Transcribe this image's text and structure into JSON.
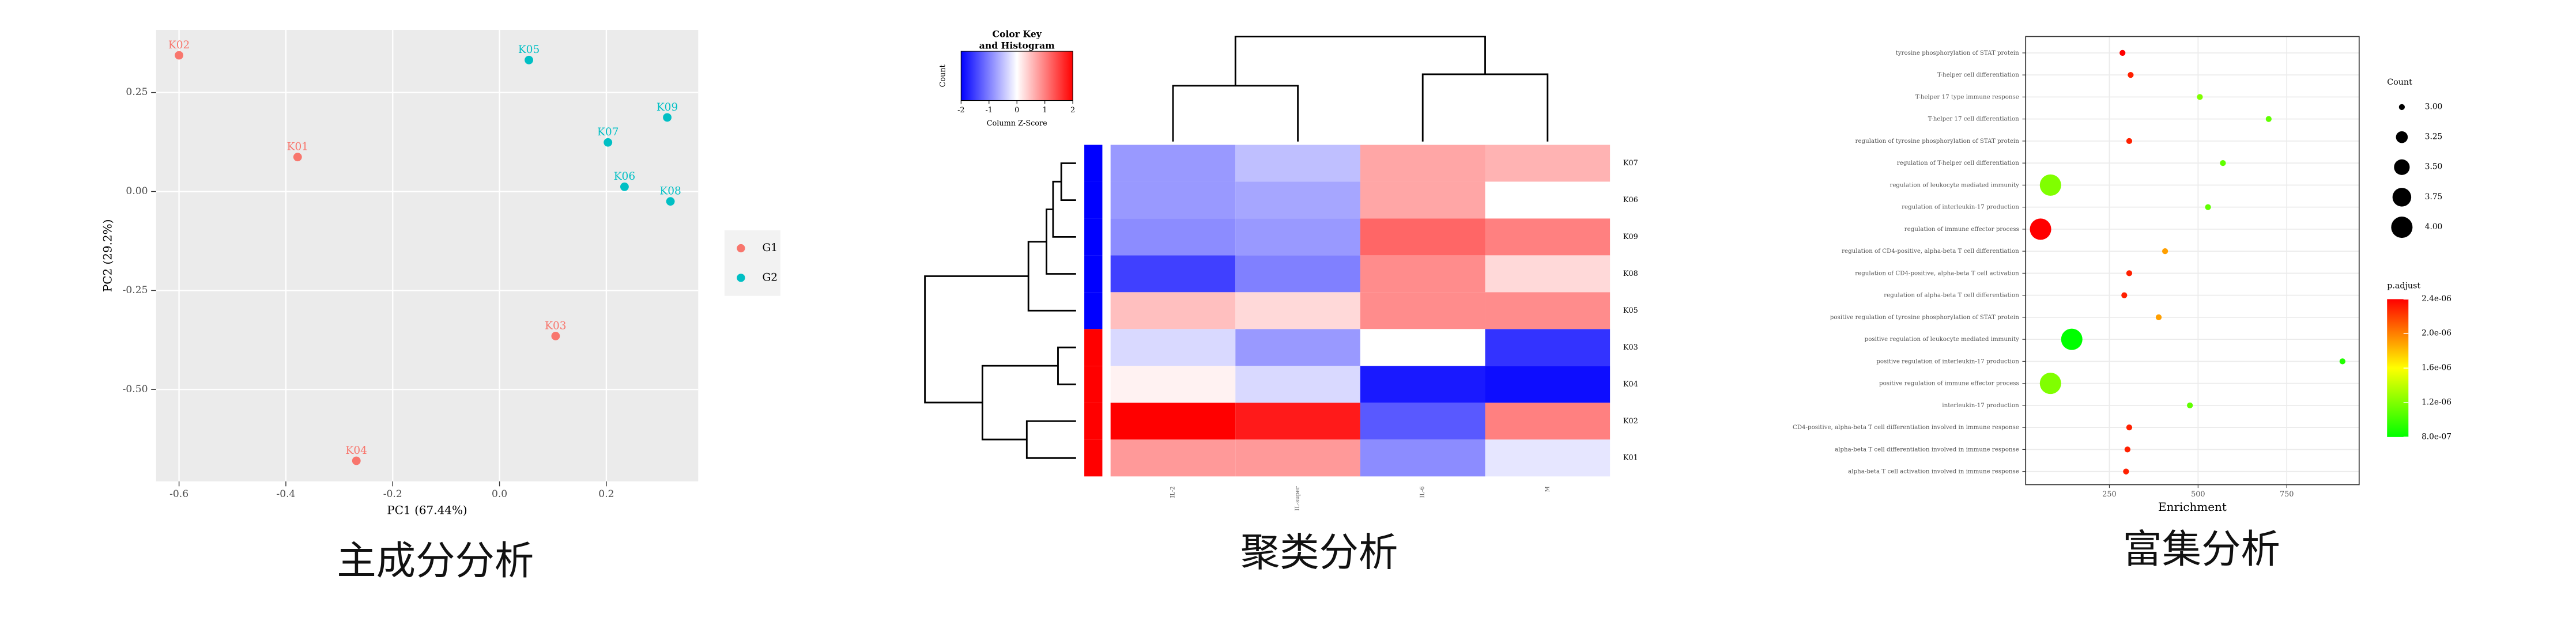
{
  "chart_data": [
    {
      "type": "scatter",
      "caption": "主成分分析",
      "xlabel": "PC1 (67.44%)",
      "ylabel": "PC2 (29.2%)",
      "xlim": [
        -0.643,
        0.372
      ],
      "ylim": [
        -0.732,
        0.408
      ],
      "xticks": [
        -0.6,
        -0.4,
        -0.2,
        {
          "value": 0,
          "label": "0.0"
        },
        0.2
      ],
      "yticks": [
        0.25,
        {
          "value": 0,
          "label": "0.00"
        },
        -0.25,
        {
          "value": -0.5,
          "label": "-0.50"
        }
      ],
      "grid": true,
      "series": [
        {
          "name": "G1",
          "color": "#F8766D",
          "labels": [
            "K02",
            "K01",
            "K03",
            "K04"
          ],
          "x": [
            -0.6,
            -0.378,
            0.105,
            -0.268
          ],
          "values": [
            0.344,
            0.087,
            -0.365,
            -0.68
          ]
        },
        {
          "name": "G2",
          "color": "#00BFC4",
          "labels": [
            "K05",
            "K09",
            "K07",
            "K06",
            "K08"
          ],
          "x": [
            0.055,
            0.314,
            0.203,
            0.234,
            0.32
          ],
          "values": [
            0.332,
            0.187,
            0.124,
            0.012,
            -0.025
          ]
        }
      ]
    },
    {
      "type": "heatmap",
      "caption": "聚类分析",
      "key_title": [
        "Color Key",
        "and Histogram"
      ],
      "key_xlabel": "Column Z-Score",
      "key_ylabel": "Count",
      "zlim": [
        -2,
        2
      ],
      "zticks": [
        -2,
        -1,
        0,
        1,
        2
      ],
      "colors": {
        "low": "#0000FF",
        "mid": "#FFFFFF",
        "high": "#FF0000"
      },
      "columns": [
        "IL-2",
        "IL-super",
        "IL-6",
        "M"
      ],
      "rows": [
        "K07",
        "K06",
        "K09",
        "K08",
        "K05",
        "K03",
        "K04",
        "K02",
        "K01"
      ],
      "row_colors": [
        "#0000FF",
        "#0000FF",
        "#0000FF",
        "#0000FF",
        "#0000FF",
        "#FF0000",
        "#FF0000",
        "#FF0000",
        "#FF0000"
      ],
      "values": [
        [
          -0.8,
          -0.5,
          0.7,
          0.6
        ],
        [
          -0.8,
          -0.7,
          0.7,
          0
        ],
        [
          -0.9,
          -0.8,
          1.2,
          1.0
        ],
        [
          -1.5,
          -1.0,
          0.9,
          0.3
        ],
        [
          0.5,
          0.3,
          0.9,
          0.9
        ],
        [
          -0.3,
          -0.8,
          0,
          -1.6
        ],
        [
          0.1,
          -0.3,
          -1.8,
          -1.9
        ],
        [
          2.0,
          1.8,
          -1.3,
          1.0
        ],
        [
          0.8,
          0.8,
          -0.9,
          -0.2
        ]
      ]
    },
    {
      "type": "dot",
      "caption": "富集分析",
      "xlabel": "Enrichment",
      "size_title": "Count",
      "color_title": "p.adjust",
      "xlim": [
        14,
        954
      ],
      "xticks": [
        250,
        500,
        750
      ],
      "categories": [
        "tyrosine phosphorylation of STAT protein",
        "T-helper cell differentiation",
        "T-helper 17 type immune response",
        "T-helper 17 cell differentiation",
        "regulation of tyrosine phosphorylation of STAT protein",
        "regulation of T-helper cell differentiation",
        "regulation of leukocyte mediated immunity",
        "regulation of interleukin-17 production",
        "regulation of immune effector process",
        "regulation of CD4-positive, alpha-beta T cell differentiation",
        "regulation of CD4-positive, alpha-beta T cell activation",
        "regulation of alpha-beta T cell differentiation",
        "positive regulation of tyrosine phosphorylation of STAT protein",
        "positive regulation of leukocyte mediated immunity",
        "positive regulation of interleukin-17 production",
        "positive regulation of immune effector process",
        "interleukin-17 production",
        "CD4-positive, alpha-beta T cell differentiation involved in immune response",
        "alpha-beta T cell differentiation involved in immune response",
        "alpha-beta T cell activation involved in immune response"
      ],
      "values": [
        287,
        310,
        505,
        699,
        306,
        570,
        84,
        528,
        56,
        407,
        306,
        292,
        389,
        144,
        907,
        84,
        477,
        306,
        301,
        297
      ],
      "counts": [
        3,
        3,
        3,
        3,
        3,
        3,
        4,
        3,
        4,
        3,
        3,
        3,
        3,
        4,
        3,
        4,
        3,
        3,
        3,
        3
      ],
      "p_adjust": [
        2.4e-06,
        2.3e-06,
        1.2e-06,
        1.1e-06,
        2.3e-06,
        1.1e-06,
        1.2e-06,
        1.1e-06,
        2.4e-06,
        1.9e-06,
        2.3e-06,
        2.3e-06,
        1.9e-06,
        8e-07,
        9e-07,
        1.2e-06,
        1.1e-06,
        2.3e-06,
        2.3e-06,
        2.3e-06
      ],
      "sizelim": [
        3,
        4
      ],
      "sizeticks": [
        {
          "value": 3,
          "label": "3.00"
        },
        3.25,
        {
          "value": 3.5,
          "label": "3.50"
        },
        3.75,
        {
          "value": 4,
          "label": "4.00"
        }
      ],
      "colorlim": [
        8e-07,
        2.4e-06
      ],
      "colorticks": [
        {
          "value": 2.4e-06,
          "label": "2.4e-06"
        },
        {
          "value": 2e-06,
          "label": "2.0e-06"
        },
        {
          "value": 1.6e-06,
          "label": "1.6e-06"
        },
        {
          "value": 1.2e-06,
          "label": "1.2e-06"
        },
        {
          "value": 8e-07,
          "label": "8.0e-07"
        }
      ]
    }
  ]
}
